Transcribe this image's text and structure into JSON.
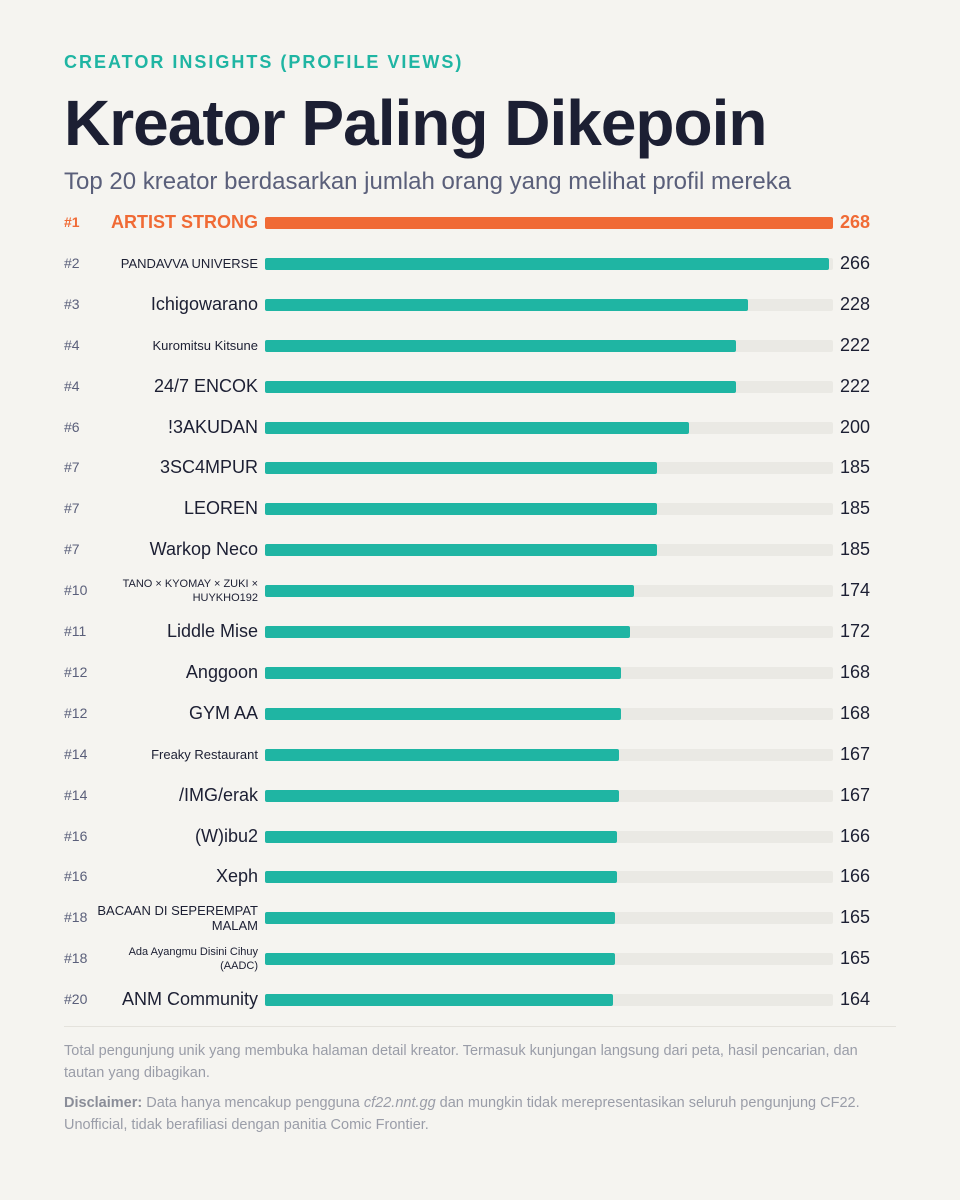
{
  "header": {
    "eyebrow": "CREATOR INSIGHTS (PROFILE VIEWS)",
    "title": "Kreator Paling Dikepoin",
    "subtitle": "Top 20 kreator berdasarkan jumlah orang yang melihat profil mereka"
  },
  "chart_data": {
    "type": "bar",
    "orientation": "horizontal",
    "title": "Kreator Paling Dikepoin",
    "subtitle": "Top 20 kreator berdasarkan jumlah orang yang melihat profil mereka",
    "xlim": [
      0,
      268
    ],
    "grid": false,
    "highlight_color": "#f06a35",
    "bar_color": "#1fb5a3",
    "track_color": "#eae9e4",
    "rows": [
      {
        "rank": "#1",
        "name": "ARTIST STRONG",
        "value": 268
      },
      {
        "rank": "#2",
        "name": "PANDAVVA UNIVERSE",
        "value": 266
      },
      {
        "rank": "#3",
        "name": "Ichigowarano",
        "value": 228
      },
      {
        "rank": "#4",
        "name": "Kuromitsu Kitsune",
        "value": 222
      },
      {
        "rank": "#4",
        "name": "24/7 ENCOK",
        "value": 222
      },
      {
        "rank": "#6",
        "name": "!3AKUDAN",
        "value": 200
      },
      {
        "rank": "#7",
        "name": "3SC4MPUR",
        "value": 185
      },
      {
        "rank": "#7",
        "name": "LEOREN",
        "value": 185
      },
      {
        "rank": "#7",
        "name": "Warkop Neco",
        "value": 185
      },
      {
        "rank": "#10",
        "name": "TANO × KYOMAY × ZUKI × HUYKHO192",
        "value": 174
      },
      {
        "rank": "#11",
        "name": "Liddle Mise",
        "value": 172
      },
      {
        "rank": "#12",
        "name": "Anggoon",
        "value": 168
      },
      {
        "rank": "#12",
        "name": "GYM AA",
        "value": 168
      },
      {
        "rank": "#14",
        "name": "Freaky Restaurant",
        "value": 167
      },
      {
        "rank": "#14",
        "name": "/IMG/erak",
        "value": 167
      },
      {
        "rank": "#16",
        "name": "(W)ibu2",
        "value": 166
      },
      {
        "rank": "#16",
        "name": "Xeph",
        "value": 166
      },
      {
        "rank": "#18",
        "name": "BACAAN DI SEPEREMPAT MALAM",
        "value": 165
      },
      {
        "rank": "#18",
        "name": "Ada Ayangmu Disini Cihuy (AADC)",
        "value": 165
      },
      {
        "rank": "#20",
        "name": "ANM Community",
        "value": 164
      }
    ]
  },
  "footer": {
    "note": "Total pengunjung unik yang membuka halaman detail kreator. Termasuk kunjungan langsung dari peta, hasil pencarian, dan tautan yang dibagikan.",
    "disclaimer_label": "Disclaimer:",
    "disclaimer_pre": " Data hanya mencakup pengguna ",
    "disclaimer_site": "cf22.nnt.gg",
    "disclaimer_post": " dan mungkin tidak merepresentasikan seluruh pengunjung CF22. Unofficial, tidak berafiliasi dengan panitia Comic Frontier."
  }
}
